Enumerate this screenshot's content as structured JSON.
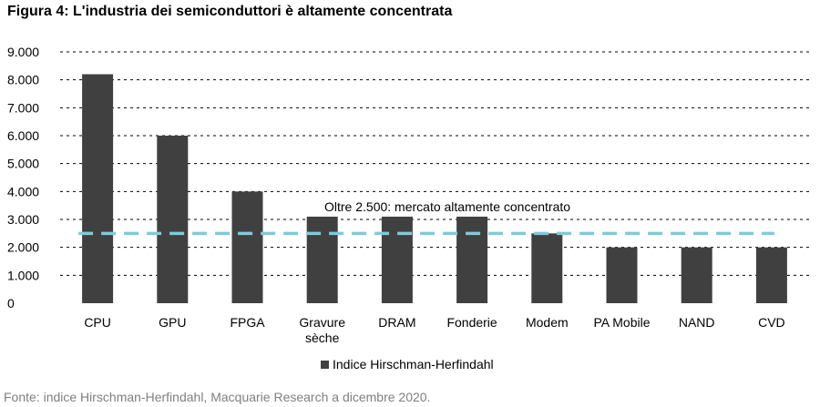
{
  "title": "Figura 4: L'industria dei semiconduttori è altamente concentrata",
  "footer": "Fonte: indice Hirschman-Herfindahl, Macquarie Research a dicembre 2020.",
  "chart_data": {
    "type": "bar",
    "categories": [
      [
        "CPU"
      ],
      [
        "GPU"
      ],
      [
        "FPGA"
      ],
      [
        "Gravure",
        "sèche"
      ],
      [
        "DRAM"
      ],
      [
        "Fonderie"
      ],
      [
        "Modem"
      ],
      [
        "PA Mobile"
      ],
      [
        "NAND"
      ],
      [
        "CVD"
      ]
    ],
    "series": [
      {
        "name": "Indice Hirschman-Herfindahl",
        "color": "#404040",
        "values": [
          8200,
          6000,
          4000,
          3100,
          3100,
          3100,
          2500,
          2000,
          2000,
          2000
        ]
      }
    ],
    "ylim": [
      0,
      9000
    ],
    "yticks": [
      0,
      1000,
      2000,
      3000,
      4000,
      5000,
      6000,
      7000,
      8000,
      9000
    ],
    "ytick_labels": [
      "0",
      "1.000",
      "2.000",
      "3.000",
      "4.000",
      "5.000",
      "6.000",
      "7.000",
      "8.000",
      "9.000"
    ],
    "gridlines": true,
    "gridline_style": "dashed",
    "threshold": {
      "value": 2500,
      "label": "Oltre 2.500: mercato altamente concentrato",
      "color": "#7fcbd8"
    },
    "legend_position": "bottom"
  }
}
